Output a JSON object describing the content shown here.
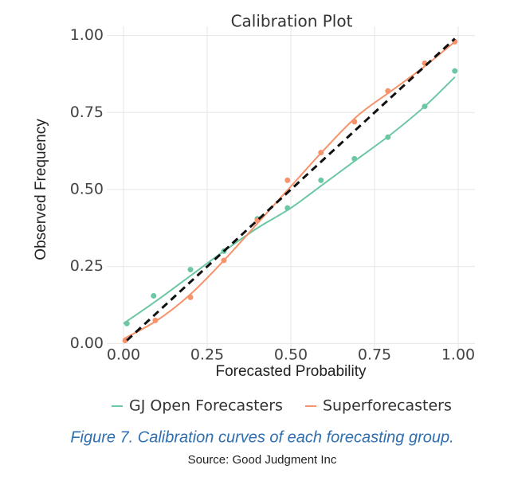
{
  "chart_data": {
    "type": "calibration",
    "title": "Calibration Plot",
    "x_label": "Forecasted Probability",
    "y_label": "Observed Frequency",
    "xlim": [
      -0.05,
      1.05
    ],
    "ylim": [
      -0.03,
      1.03
    ],
    "xticks": [
      {
        "value": 0,
        "label": "0.00"
      },
      0.25,
      {
        "value": 0.5,
        "label": "0.50"
      },
      0.75,
      {
        "value": 1,
        "label": "1.00"
      }
    ],
    "yticks": [
      {
        "value": 0,
        "label": "0.00"
      },
      0.25,
      {
        "value": 0.5,
        "label": "0.50"
      },
      0.75,
      {
        "value": 1,
        "label": "1.00"
      }
    ],
    "grid": true,
    "legend": "bottom",
    "reference": {
      "x": [
        0.01,
        0.99
      ],
      "y": [
        0.01,
        0.99
      ],
      "color": "#111111"
    },
    "fit_x": [
      0,
      0.1,
      0.2,
      0.3,
      0.4,
      0.5,
      0.6,
      0.7,
      0.8,
      0.9,
      0.99
    ],
    "series": [
      {
        "name": "GJ Open Forecasters",
        "color": "#6cc7a3",
        "x": [
          0.01,
          0.09,
          0.2,
          0.3,
          0.4,
          0.49,
          0.59,
          0.69,
          0.79,
          0.9,
          0.99
        ],
        "values": [
          0.065,
          0.155,
          0.24,
          0.3,
          0.405,
          0.44,
          0.53,
          0.6,
          0.67,
          0.77,
          0.885
        ],
        "fit": [
          0.065,
          0.14,
          0.22,
          0.3,
          0.375,
          0.44,
          0.52,
          0.6,
          0.68,
          0.77,
          0.865
        ]
      },
      {
        "name": "Superforecasters",
        "color": "#f6936b",
        "x": [
          0.005,
          0.095,
          0.2,
          0.3,
          0.4,
          0.49,
          0.59,
          0.69,
          0.79,
          0.9,
          0.99
        ],
        "values": [
          0.01,
          0.075,
          0.15,
          0.27,
          0.4,
          0.53,
          0.62,
          0.72,
          0.82,
          0.91,
          0.98
        ],
        "fit": [
          0.015,
          0.075,
          0.16,
          0.27,
          0.39,
          0.51,
          0.63,
          0.74,
          0.82,
          0.9,
          0.98
        ]
      }
    ]
  },
  "caption": "Figure 7. Calibration curves of each forecasting group.",
  "source": "Source: Good Judgment Inc"
}
